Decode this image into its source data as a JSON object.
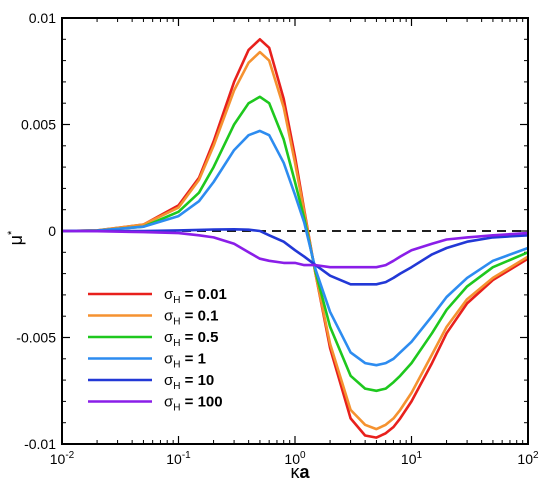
{
  "chart_data": {
    "type": "line",
    "xscale": "log",
    "xlim": [
      0.01,
      100
    ],
    "ylim": [
      -0.01,
      0.01
    ],
    "xlabel_main": "κ",
    "xlabel_bold": "a",
    "ylabel_main": "μ",
    "ylabel_sup": "*",
    "y_ticks": [
      {
        "value": 0.01,
        "label": "0.01"
      },
      {
        "value": 0.005,
        "label": "0.005"
      },
      {
        "value": 0,
        "label": "0"
      },
      {
        "value": -0.005,
        "label": "-0.005"
      },
      {
        "value": -0.01,
        "label": "-0.01"
      }
    ],
    "x_ticks": [
      {
        "value": 0.01,
        "base": "10",
        "exp": "-2"
      },
      {
        "value": 0.1,
        "base": "10",
        "exp": "-1"
      },
      {
        "value": 1,
        "base": "10",
        "exp": "0"
      },
      {
        "value": 10,
        "base": "10",
        "exp": "1"
      },
      {
        "value": 100,
        "base": "10",
        "exp": "2"
      }
    ],
    "zero_line": {
      "style": "dashed",
      "color": "#000000"
    },
    "legend_placement": "bottom-left",
    "legend_symbol": "σ",
    "legend_subscript": "H",
    "x": [
      0.01,
      0.02,
      0.05,
      0.1,
      0.15,
      0.2,
      0.3,
      0.4,
      0.5,
      0.6,
      0.8,
      1.0,
      1.2,
      1.5,
      2,
      3,
      4,
      5,
      6,
      7,
      8,
      10,
      15,
      20,
      30,
      50,
      100
    ],
    "series": [
      {
        "name": "= 0.01",
        "color": "#e8201c",
        "values": [
          0.0,
          3e-05,
          0.0003,
          0.0012,
          0.0025,
          0.0042,
          0.007,
          0.0085,
          0.009,
          0.0086,
          0.0062,
          0.0035,
          0.001,
          -0.002,
          -0.0055,
          -0.0088,
          -0.0096,
          -0.0097,
          -0.0095,
          -0.0092,
          -0.0088,
          -0.008,
          -0.0062,
          -0.0048,
          -0.0034,
          -0.0023,
          -0.0013
        ]
      },
      {
        "name": "= 0.1",
        "color": "#f59230",
        "values": [
          0.0,
          3e-05,
          0.0003,
          0.0011,
          0.0024,
          0.004,
          0.0066,
          0.0079,
          0.0084,
          0.008,
          0.0058,
          0.0032,
          0.0009,
          -0.002,
          -0.0053,
          -0.0084,
          -0.0091,
          -0.0093,
          -0.0091,
          -0.0088,
          -0.0084,
          -0.0076,
          -0.0058,
          -0.0045,
          -0.0032,
          -0.0022,
          -0.0012
        ]
      },
      {
        "name": "= 0.5",
        "color": "#1ec81e",
        "values": [
          0.0,
          2e-05,
          0.0002,
          0.0009,
          0.0018,
          0.003,
          0.005,
          0.006,
          0.0063,
          0.006,
          0.0043,
          0.0023,
          0.0006,
          -0.0019,
          -0.0045,
          -0.0068,
          -0.0074,
          -0.0075,
          -0.0074,
          -0.0071,
          -0.0068,
          -0.0062,
          -0.0048,
          -0.0037,
          -0.0026,
          -0.0017,
          -0.001
        ]
      },
      {
        "name": "= 1",
        "color": "#2d8cf0",
        "values": [
          0.0,
          2e-05,
          0.0002,
          0.0007,
          0.0014,
          0.0023,
          0.0038,
          0.0045,
          0.0047,
          0.0045,
          0.0032,
          0.0017,
          0.0004,
          -0.0018,
          -0.0038,
          -0.0057,
          -0.0062,
          -0.0063,
          -0.0062,
          -0.006,
          -0.0057,
          -0.0052,
          -0.004,
          -0.0031,
          -0.0022,
          -0.0014,
          -0.0008
        ]
      },
      {
        "name": "= 10",
        "color": "#2238d6",
        "values": [
          0.0,
          0.0,
          0.0,
          3e-05,
          5e-05,
          7e-05,
          8e-05,
          6e-05,
          0.0,
          -0.0002,
          -0.0005,
          -0.0009,
          -0.0012,
          -0.0016,
          -0.0021,
          -0.0025,
          -0.0025,
          -0.0025,
          -0.0024,
          -0.0022,
          -0.002,
          -0.0017,
          -0.0011,
          -0.0008,
          -0.0005,
          -0.0003,
          -0.0002
        ]
      },
      {
        "name": "= 100",
        "color": "#8a1ee8",
        "values": [
          0.0,
          -1e-05,
          -5e-05,
          -0.0001,
          -0.0002,
          -0.0003,
          -0.0006,
          -0.001,
          -0.0013,
          -0.0014,
          -0.0015,
          -0.0015,
          -0.0016,
          -0.0016,
          -0.0017,
          -0.0017,
          -0.0017,
          -0.0017,
          -0.0016,
          -0.0014,
          -0.0012,
          -0.0009,
          -0.0006,
          -0.0004,
          -0.0003,
          -0.0002,
          -0.0001
        ]
      }
    ]
  }
}
